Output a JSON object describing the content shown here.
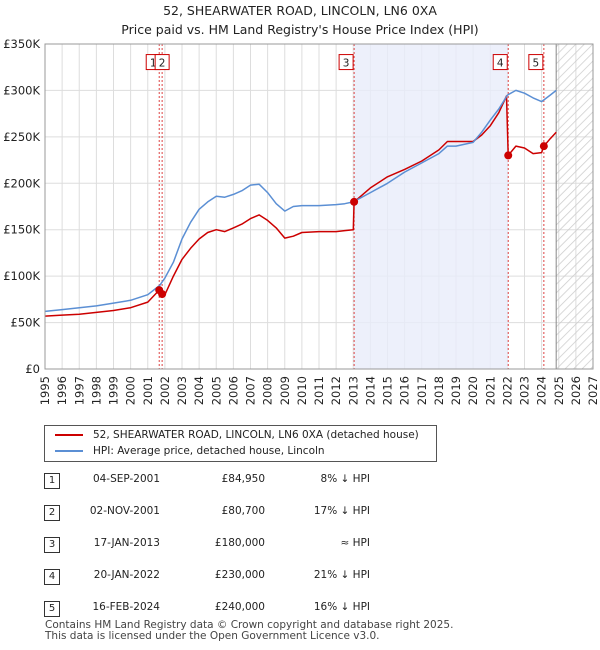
{
  "chart_data": {
    "type": "line",
    "title": "52, SHEARWATER ROAD, LINCOLN, LN6 0XA",
    "subtitle": "Price paid vs. HM Land Registry's House Price Index (HPI)",
    "xlim": [
      1995,
      2027
    ],
    "ylim": [
      0,
      350000
    ],
    "y_ticks": [
      0,
      50000,
      100000,
      150000,
      200000,
      250000,
      300000,
      350000
    ],
    "y_tick_labels": [
      "£0",
      "£50K",
      "£100K",
      "£150K",
      "£200K",
      "£250K",
      "£300K",
      "£350K"
    ],
    "x_ticks": [
      1995,
      1996,
      1997,
      1998,
      1999,
      2000,
      2001,
      2002,
      2003,
      2004,
      2005,
      2006,
      2007,
      2008,
      2009,
      2010,
      2011,
      2012,
      2013,
      2014,
      2015,
      2016,
      2017,
      2018,
      2019,
      2020,
      2021,
      2022,
      2023,
      2024,
      2025,
      2026,
      2027
    ],
    "x_tick_labels": [
      "1995",
      "1996",
      "1997",
      "1998",
      "1999",
      "2000",
      "2001",
      "2002",
      "2003",
      "2004",
      "2005",
      "2006",
      "2007",
      "2008",
      "2009",
      "2010",
      "2011",
      "2012",
      "2013",
      "2014",
      "2015",
      "2016",
      "2017",
      "2018",
      "2019",
      "2020",
      "2021",
      "2022",
      "2023",
      "2024",
      "2025",
      "2026",
      "2027"
    ],
    "shaded_period": [
      2013.05,
      2022.05
    ],
    "forecast_from": 2024.85,
    "series": [
      {
        "name": "HPI: Average price, detached house, Lincoln",
        "color": "#5b8fd4",
        "x": [
          1995,
          1996,
          1997,
          1998,
          1999,
          2000,
          2001,
          2001.7,
          2002,
          2002.5,
          2003,
          2003.5,
          2004,
          2004.5,
          2005,
          2005.5,
          2006,
          2006.5,
          2007,
          2007.5,
          2008,
          2008.5,
          2009,
          2009.5,
          2010,
          2011,
          2012,
          2012.5,
          2013,
          2014,
          2015,
          2016,
          2017,
          2018,
          2018.5,
          2019,
          2020,
          2020.5,
          2021,
          2021.5,
          2022,
          2022.5,
          2023,
          2023.5,
          2024,
          2024.5,
          2024.85
        ],
        "values": [
          62000,
          64000,
          66000,
          68000,
          71000,
          74000,
          80000,
          90000,
          98000,
          115000,
          140000,
          158000,
          172000,
          180000,
          186000,
          185000,
          188000,
          192000,
          198000,
          199000,
          190000,
          178000,
          170000,
          175000,
          176000,
          176000,
          177000,
          178000,
          180000,
          190000,
          200000,
          212000,
          222000,
          232000,
          240000,
          240000,
          244000,
          255000,
          268000,
          280000,
          295000,
          300000,
          297000,
          292000,
          288000,
          295000,
          300000
        ]
      },
      {
        "name": "52, SHEARWATER ROAD, LINCOLN, LN6 0XA (detached house)",
        "color": "#cc0000",
        "x": [
          1995,
          1996,
          1997,
          1998,
          1999,
          2000,
          2001,
          2001.67,
          2001.84,
          2002,
          2002.5,
          2003,
          2003.5,
          2004,
          2004.5,
          2005,
          2005.5,
          2006,
          2006.5,
          2007,
          2007.5,
          2008,
          2008.5,
          2009,
          2009.5,
          2010,
          2011,
          2012,
          2012.5,
          2013,
          2013.05,
          2014,
          2015,
          2016,
          2017,
          2018,
          2018.5,
          2019,
          2020,
          2020.5,
          2021,
          2021.5,
          2021.95,
          2022.05,
          2022.5,
          2023,
          2023.5,
          2024,
          2024.13,
          2024.5,
          2024.85
        ],
        "values": [
          57000,
          58000,
          59000,
          61000,
          63000,
          66000,
          72000,
          84950,
          80700,
          80000,
          100000,
          118000,
          130000,
          140000,
          147000,
          150000,
          148000,
          152000,
          156000,
          162000,
          166000,
          160000,
          152000,
          141000,
          143000,
          147000,
          148000,
          148000,
          149000,
          150000,
          180000,
          195000,
          207000,
          215000,
          224000,
          236000,
          245000,
          245000,
          245000,
          252000,
          262000,
          276000,
          294000,
          230000,
          240000,
          238000,
          232000,
          233000,
          240000,
          248000,
          255000
        ]
      }
    ],
    "sale_points": [
      {
        "id": "1",
        "x": 2001.67,
        "value": 84950
      },
      {
        "id": "2",
        "x": 2001.84,
        "value": 80700
      },
      {
        "id": "3",
        "x": 2013.05,
        "value": 180000
      },
      {
        "id": "4",
        "x": 2022.05,
        "value": 230000
      },
      {
        "id": "5",
        "x": 2024.13,
        "value": 240000
      }
    ],
    "markers": [
      {
        "label": "1",
        "x": 2001.67
      },
      {
        "label": "2",
        "x": 2001.84
      },
      {
        "label": "3",
        "x": 2013.05
      },
      {
        "label": "4",
        "x": 2022.05
      },
      {
        "label": "5",
        "x": 2024.13
      }
    ],
    "marker_label_value": 330000,
    "legend": [
      {
        "label": "52, SHEARWATER ROAD, LINCOLN, LN6 0XA (detached house)",
        "color": "#cc0000"
      },
      {
        "label": "HPI: Average price, detached house, Lincoln",
        "color": "#5b8fd4"
      }
    ]
  },
  "transactions": [
    {
      "num": "1",
      "date": "04-SEP-2001",
      "price": "£84,950",
      "hpi": "8% ↓ HPI"
    },
    {
      "num": "2",
      "date": "02-NOV-2001",
      "price": "£80,700",
      "hpi": "17% ↓ HPI"
    },
    {
      "num": "3",
      "date": "17-JAN-2013",
      "price": "£180,000",
      "hpi": "≈ HPI"
    },
    {
      "num": "4",
      "date": "20-JAN-2022",
      "price": "£230,000",
      "hpi": "21% ↓ HPI"
    },
    {
      "num": "5",
      "date": "16-FEB-2024",
      "price": "£240,000",
      "hpi": "16% ↓ HPI"
    }
  ],
  "footer": {
    "line1": "Contains HM Land Registry data © Crown copyright and database right 2025.",
    "line2": "This data is licensed under the Open Government Licence v3.0."
  }
}
